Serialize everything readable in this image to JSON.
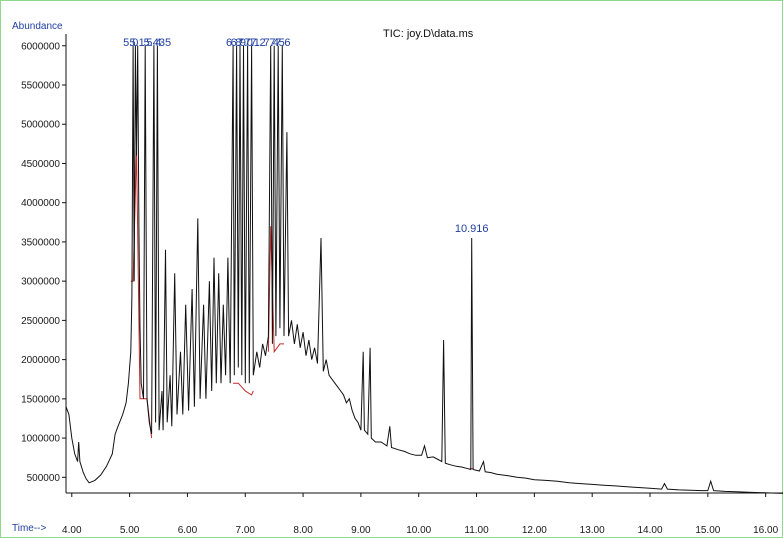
{
  "chart_data": {
    "type": "line",
    "title": "TIC: joy.D\\data.ms",
    "ylabel": "Abundance",
    "xlabel": "Time-->",
    "xlim": [
      3.9,
      16.3
    ],
    "ylim": [
      300000,
      6150000
    ],
    "x_ticks": [
      4.0,
      5.0,
      6.0,
      7.0,
      8.0,
      9.0,
      10.0,
      11.0,
      12.0,
      13.0,
      14.0,
      15.0,
      16.0
    ],
    "x_tick_labels": [
      "4.00",
      "5.00",
      "6.00",
      "7.00",
      "8.00",
      "9.00",
      "10.00",
      "11.00",
      "12.00",
      "13.00",
      "14.00",
      "15.00",
      "16.00"
    ],
    "y_ticks": [
      500000,
      1000000,
      1500000,
      2000000,
      2500000,
      3000000,
      3500000,
      4000000,
      4500000,
      5000000,
      5500000,
      6000000
    ],
    "y_tick_labels": [
      "500000",
      "1000000",
      "1500000",
      "2000000",
      "2500000",
      "3000000",
      "3500000",
      "4000000",
      "4500000",
      "5000000",
      "5500000",
      "6000000"
    ],
    "grid": false,
    "colors": {
      "trace": "#111111",
      "baseline": "#c62828",
      "label": "#1f3fa0",
      "frame": "#8fd98f"
    },
    "peak_labels": [
      {
        "text": "5.0",
        "x": 5.02
      },
      {
        "text": "5.1",
        "x": 5.13
      },
      {
        "text": "5.4",
        "x": 5.42
      },
      {
        "text": "5.435",
        "x": 5.48
      },
      {
        "text": "6.8",
        "x": 6.8
      },
      {
        "text": "6.9",
        "x": 6.88
      },
      {
        "text": "7.0",
        "x": 7.0
      },
      {
        "text": "7.1",
        "x": 7.12
      },
      {
        "text": "7.2",
        "x": 7.22
      },
      {
        "text": "7.4",
        "x": 7.45
      },
      {
        "text": "7.5",
        "x": 7.55
      },
      {
        "text": "7.6",
        "x": 7.65
      },
      {
        "text": "10.916",
        "x": 10.916,
        "y": 3550000
      }
    ],
    "series": [
      {
        "trace": [
          [
            3.9,
            1400000
          ],
          [
            3.95,
            1300000
          ],
          [
            4.0,
            1000000
          ],
          [
            4.05,
            800000
          ],
          [
            4.1,
            700000
          ],
          [
            4.12,
            950000
          ],
          [
            4.14,
            700000
          ],
          [
            4.2,
            560000
          ],
          [
            4.25,
            480000
          ],
          [
            4.3,
            430000
          ],
          [
            4.4,
            460000
          ],
          [
            4.5,
            530000
          ],
          [
            4.6,
            640000
          ],
          [
            4.7,
            800000
          ],
          [
            4.75,
            1050000
          ],
          [
            4.8,
            1150000
          ],
          [
            4.88,
            1300000
          ],
          [
            4.94,
            1450000
          ],
          [
            4.98,
            1700000
          ],
          [
            5.02,
            2100000
          ],
          [
            5.04,
            2800000
          ],
          [
            5.06,
            6000000
          ],
          [
            5.08,
            3000000
          ],
          [
            5.1,
            6000000
          ],
          [
            5.12,
            4600000
          ],
          [
            5.14,
            6000000
          ],
          [
            5.16,
            3700000
          ],
          [
            5.18,
            2400000
          ],
          [
            5.2,
            1700000
          ],
          [
            5.24,
            1500000
          ],
          [
            5.27,
            6000000
          ],
          [
            5.3,
            1500000
          ],
          [
            5.34,
            1200000
          ],
          [
            5.38,
            1050000
          ],
          [
            5.42,
            6000000
          ],
          [
            5.45,
            1200000
          ],
          [
            5.48,
            6000000
          ],
          [
            5.51,
            1100000
          ],
          [
            5.56,
            1600000
          ],
          [
            5.58,
            1100000
          ],
          [
            5.62,
            3400000
          ],
          [
            5.65,
            1200000
          ],
          [
            5.7,
            1800000
          ],
          [
            5.73,
            1150000
          ],
          [
            5.78,
            3100000
          ],
          [
            5.82,
            1300000
          ],
          [
            5.88,
            2100000
          ],
          [
            5.92,
            1300000
          ],
          [
            5.97,
            2700000
          ],
          [
            6.02,
            1350000
          ],
          [
            6.08,
            2900000
          ],
          [
            6.12,
            1400000
          ],
          [
            6.18,
            3800000
          ],
          [
            6.22,
            1500000
          ],
          [
            6.28,
            2700000
          ],
          [
            6.32,
            1500000
          ],
          [
            6.38,
            3000000
          ],
          [
            6.42,
            1600000
          ],
          [
            6.46,
            3300000
          ],
          [
            6.5,
            1700000
          ],
          [
            6.54,
            3100000
          ],
          [
            6.58,
            1700000
          ],
          [
            6.62,
            2700000
          ],
          [
            6.66,
            1800000
          ],
          [
            6.7,
            3300000
          ],
          [
            6.74,
            1700000
          ],
          [
            6.79,
            6000000
          ],
          [
            6.81,
            1800000
          ],
          [
            6.85,
            6000000
          ],
          [
            6.88,
            1900000
          ],
          [
            6.91,
            6000000
          ],
          [
            6.94,
            1800000
          ],
          [
            6.97,
            6000000
          ],
          [
            7.0,
            1700000
          ],
          [
            7.04,
            6000000
          ],
          [
            7.07,
            1700000
          ],
          [
            7.11,
            6000000
          ],
          [
            7.14,
            1800000
          ],
          [
            7.2,
            2100000
          ],
          [
            7.25,
            1900000
          ],
          [
            7.3,
            2200000
          ],
          [
            7.35,
            2050000
          ],
          [
            7.4,
            2300000
          ],
          [
            7.44,
            6000000
          ],
          [
            7.47,
            2200000
          ],
          [
            7.5,
            6000000
          ],
          [
            7.53,
            2300000
          ],
          [
            7.57,
            6000000
          ],
          [
            7.6,
            2400000
          ],
          [
            7.64,
            6000000
          ],
          [
            7.67,
            2300000
          ],
          [
            7.72,
            4900000
          ],
          [
            7.75,
            2300000
          ],
          [
            7.8,
            2500000
          ],
          [
            7.85,
            2200000
          ],
          [
            7.9,
            2450000
          ],
          [
            7.95,
            2150000
          ],
          [
            8.0,
            2350000
          ],
          [
            8.05,
            2050000
          ],
          [
            8.1,
            2250000
          ],
          [
            8.15,
            2000000
          ],
          [
            8.2,
            2150000
          ],
          [
            8.25,
            1950000
          ],
          [
            8.31,
            3550000
          ],
          [
            8.35,
            1850000
          ],
          [
            8.4,
            2000000
          ],
          [
            8.45,
            1800000
          ],
          [
            8.5,
            1750000
          ],
          [
            8.55,
            1700000
          ],
          [
            8.6,
            1650000
          ],
          [
            8.65,
            1600000
          ],
          [
            8.7,
            1550000
          ],
          [
            8.75,
            1450000
          ],
          [
            8.8,
            1500000
          ],
          [
            8.85,
            1350000
          ],
          [
            8.9,
            1250000
          ],
          [
            8.95,
            1200000
          ],
          [
            9.0,
            1100000
          ],
          [
            9.04,
            2100000
          ],
          [
            9.06,
            1100000
          ],
          [
            9.12,
            1050000
          ],
          [
            9.16,
            2150000
          ],
          [
            9.18,
            1000000
          ],
          [
            9.25,
            950000
          ],
          [
            9.35,
            950000
          ],
          [
            9.45,
            900000
          ],
          [
            9.5,
            1150000
          ],
          [
            9.53,
            880000
          ],
          [
            9.65,
            850000
          ],
          [
            9.75,
            830000
          ],
          [
            9.85,
            800000
          ],
          [
            9.95,
            780000
          ],
          [
            10.05,
            780000
          ],
          [
            10.1,
            900000
          ],
          [
            10.15,
            750000
          ],
          [
            10.25,
            760000
          ],
          [
            10.35,
            720000
          ],
          [
            10.4,
            700000
          ],
          [
            10.43,
            2250000
          ],
          [
            10.46,
            680000
          ],
          [
            10.55,
            660000
          ],
          [
            10.65,
            640000
          ],
          [
            10.75,
            630000
          ],
          [
            10.85,
            610000
          ],
          [
            10.9,
            600000
          ],
          [
            10.916,
            3550000
          ],
          [
            10.94,
            600000
          ],
          [
            11.05,
            580000
          ],
          [
            11.12,
            700000
          ],
          [
            11.15,
            570000
          ],
          [
            11.25,
            560000
          ],
          [
            11.35,
            540000
          ],
          [
            11.45,
            530000
          ],
          [
            11.55,
            520000
          ],
          [
            11.7,
            500000
          ],
          [
            11.85,
            490000
          ],
          [
            12.0,
            470000
          ],
          [
            12.2,
            460000
          ],
          [
            12.4,
            450000
          ],
          [
            12.6,
            430000
          ],
          [
            12.8,
            420000
          ],
          [
            13.0,
            410000
          ],
          [
            13.2,
            400000
          ],
          [
            13.4,
            390000
          ],
          [
            13.6,
            380000
          ],
          [
            13.8,
            370000
          ],
          [
            14.0,
            360000
          ],
          [
            14.2,
            350000
          ],
          [
            14.25,
            420000
          ],
          [
            14.3,
            350000
          ],
          [
            14.5,
            340000
          ],
          [
            14.7,
            335000
          ],
          [
            14.9,
            330000
          ],
          [
            15.0,
            330000
          ],
          [
            15.05,
            450000
          ],
          [
            15.1,
            330000
          ],
          [
            15.3,
            320000
          ],
          [
            15.5,
            315000
          ],
          [
            15.7,
            310000
          ],
          [
            15.9,
            305000
          ],
          [
            16.1,
            300000
          ],
          [
            16.3,
            295000
          ]
        ],
        "baselines": [
          [
            [
              5.02,
              3000000
            ],
            [
              5.06,
              3000000
            ],
            [
              5.12,
              4700000
            ],
            [
              5.18,
              1500000
            ],
            [
              5.3,
              1500000
            ],
            [
              5.38,
              1000000
            ]
          ],
          [
            [
              6.79,
              1700000
            ],
            [
              6.88,
              1700000
            ],
            [
              7.0,
              1600000
            ],
            [
              7.11,
              1550000
            ],
            [
              7.14,
              1600000
            ]
          ],
          [
            [
              7.4,
              2100000
            ],
            [
              7.44,
              3700000
            ],
            [
              7.5,
              2100000
            ],
            [
              7.6,
              2200000
            ],
            [
              7.67,
              2200000
            ]
          ],
          [
            [
              10.88,
              610000
            ],
            [
              10.95,
              610000
            ]
          ]
        ]
      }
    ]
  }
}
